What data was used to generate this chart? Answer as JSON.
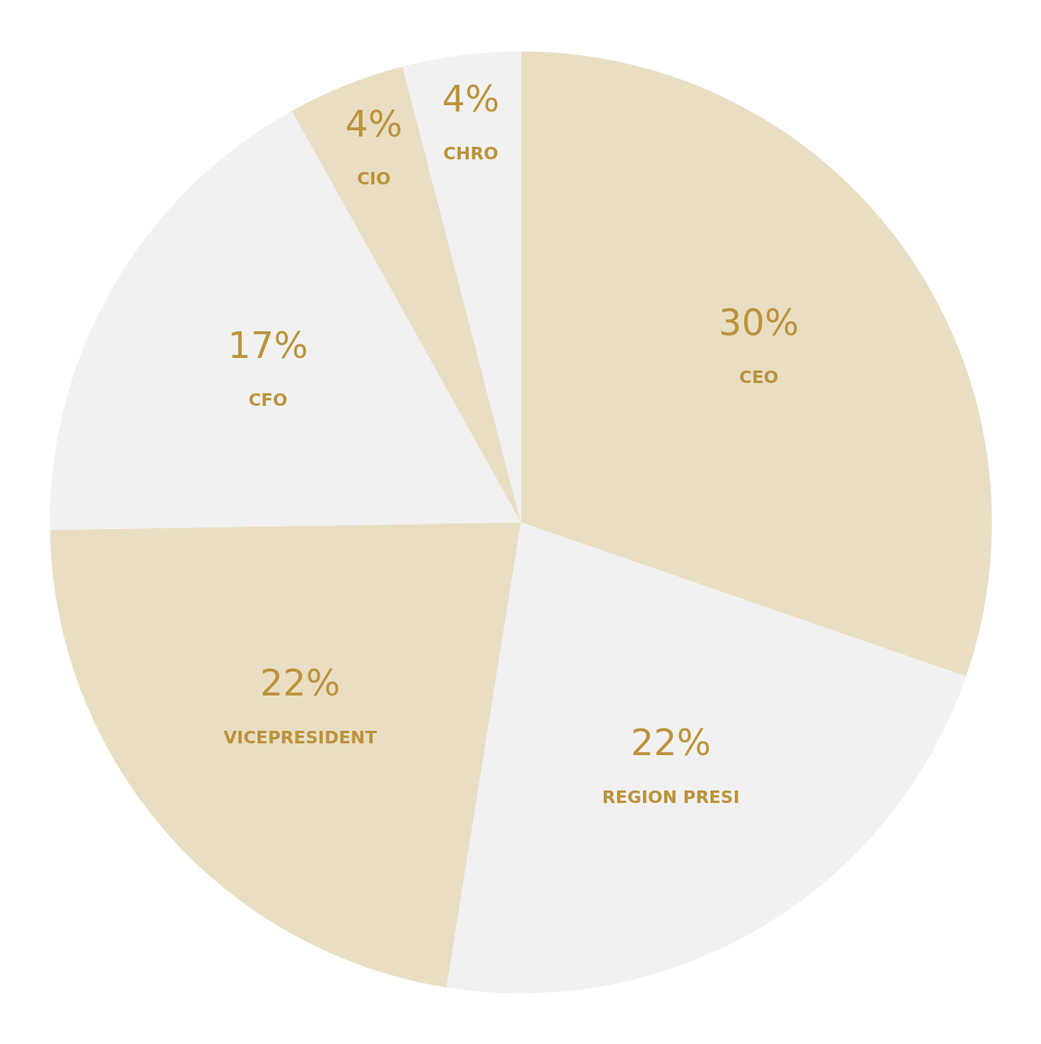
{
  "chart_data": {
    "type": "pie",
    "categories": [
      "CEO",
      "REGION PRESI",
      "VICEPRESIDENT",
      "CFO",
      "CIO",
      "CHRO"
    ],
    "values": [
      30,
      22,
      22,
      17,
      4,
      4
    ],
    "colors": [
      "#e9dec3",
      "#f1f1f1",
      "#e9dec3",
      "#f1f1f1",
      "#e9dec3",
      "#f1f1f1"
    ],
    "value_labels": [
      "30%",
      "22%",
      "22%",
      "17%",
      "4%",
      "4%"
    ]
  }
}
